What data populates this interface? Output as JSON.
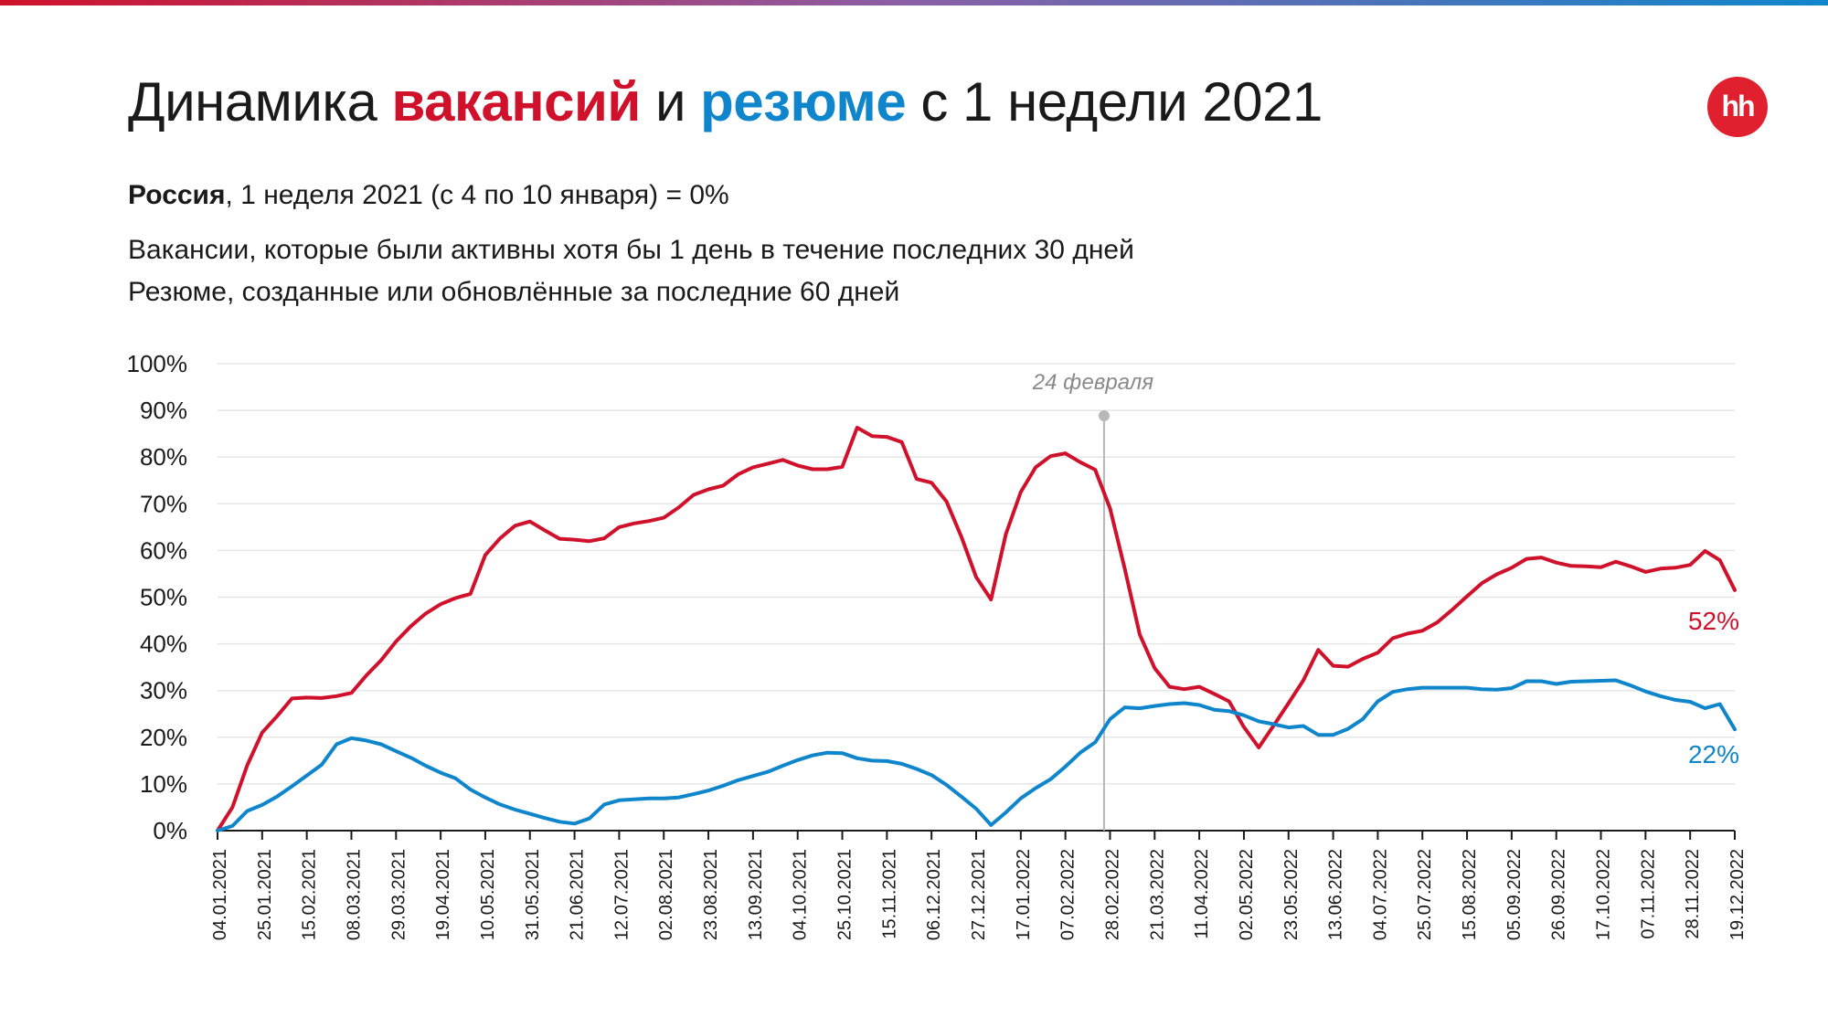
{
  "title": {
    "prefix": "Динамика ",
    "vacancies": "вакансий",
    "middle": " и ",
    "resumes": "резюме",
    "suffix": " с 1 недели 2021"
  },
  "subtitle": {
    "region": "Россия",
    "rest": ", 1 неделя 2021 (с 4 по 10 января) = 0%"
  },
  "notes": {
    "vacancies": "Вакансии, которые были активны хотя бы 1 день в течение последних 30 дней",
    "resumes": "Резюме, созданные или обновлённые за последние 60 дней"
  },
  "logo": {
    "text": "hh",
    "color": "#e0202e"
  },
  "colors": {
    "vacancies": "#d0112b",
    "resumes": "#0f86cc",
    "marker": "#b8b8b8",
    "grid": "#e6e6e6",
    "top_bar_left": "#d0112b",
    "top_bar_right": "#0f86cc"
  },
  "chart_data": {
    "type": "line",
    "ylim": [
      0,
      100
    ],
    "y_ticks": [
      "0%",
      "10%",
      "20%",
      "30%",
      "40%",
      "50%",
      "60%",
      "70%",
      "80%",
      "90%",
      "100%"
    ],
    "x_tick_labels": [
      "04.01.2021",
      "25.01.2021",
      "15.02.2021",
      "08.03.2021",
      "29.03.2021",
      "19.04.2021",
      "10.05.2021",
      "31.05.2021",
      "21.06.2021",
      "12.07.2021",
      "02.08.2021",
      "23.08.2021",
      "13.09.2021",
      "04.10.2021",
      "25.10.2021",
      "15.11.2021",
      "06.12.2021",
      "27.12.2021",
      "17.01.2022",
      "07.02.2022",
      "28.02.2022",
      "21.03.2022",
      "11.04.2022",
      "02.05.2022",
      "23.05.2022",
      "13.06.2022",
      "04.07.2022",
      "25.07.2022",
      "15.08.2022",
      "05.09.2022",
      "26.09.2022",
      "17.10.2022",
      "07.11.2022",
      "28.11.2022",
      "19.12.2022"
    ],
    "annotation": {
      "label": "24 февраля",
      "week_index": 59.6
    },
    "series": [
      {
        "name": "вакансий",
        "end_label": "52%",
        "values": [
          0,
          5,
          14,
          21,
          24.5,
          28.3,
          28.5,
          28.4,
          28.8,
          29.5,
          33.2,
          36.5,
          40.5,
          43.8,
          46.5,
          48.5,
          49.8,
          50.7,
          59,
          62.6,
          65.3,
          66.2,
          64.3,
          62.5,
          62.3,
          62,
          62.6,
          65,
          65.8,
          66.3,
          67,
          69.2,
          71.9,
          73.1,
          73.9,
          76.3,
          77.8,
          78.6,
          79.4,
          78.2,
          77.4,
          77.4,
          77.9,
          86.3,
          84.5,
          84.3,
          83.2,
          75.3,
          74.5,
          70.5,
          63,
          54.3,
          49.5,
          63.5,
          72.5,
          77.8,
          80.2,
          80.8,
          78.9,
          77.3,
          69,
          56,
          42,
          34.8,
          30.8,
          30.3,
          30.8,
          29.3,
          27.7,
          22.2,
          17.8,
          22.5,
          27.3,
          32.2,
          38.7,
          35.3,
          35.1,
          36.8,
          38.1,
          41.2,
          42.2,
          42.8,
          44.6,
          47.3,
          50.2,
          53,
          54.9,
          56.3,
          58.2,
          58.5,
          57.4,
          56.7,
          56.6,
          56.4,
          57.6,
          56.6,
          55.4,
          56.1,
          56.3,
          56.9,
          59.9,
          57.9,
          51.5
        ]
      },
      {
        "name": "резюме",
        "end_label": "22%",
        "values": [
          0,
          1,
          4.2,
          5.5,
          7.3,
          9.5,
          11.8,
          14.1,
          18.5,
          19.8,
          19.3,
          18.5,
          17,
          15.6,
          13.9,
          12.4,
          11.2,
          8.8,
          7.1,
          5.6,
          4.5,
          3.6,
          2.7,
          1.9,
          1.5,
          2.6,
          5.6,
          6.5,
          6.7,
          6.9,
          6.9,
          7.1,
          7.8,
          8.6,
          9.6,
          10.8,
          11.7,
          12.6,
          13.9,
          15.1,
          16.1,
          16.7,
          16.6,
          15.5,
          15,
          14.9,
          14.3,
          13.2,
          11.9,
          9.8,
          7.3,
          4.7,
          1.2,
          3.9,
          6.9,
          9.1,
          11,
          13.7,
          16.7,
          18.9,
          23.9,
          26.4,
          26.2,
          26.7,
          27.1,
          27.3,
          26.9,
          25.9,
          25.6,
          24.7,
          23.4,
          22.8,
          22.1,
          22.4,
          20.5,
          20.5,
          21.8,
          23.9,
          27.7,
          29.7,
          30.3,
          30.6,
          30.6,
          30.6,
          30.6,
          30.3,
          30.2,
          30.5,
          32,
          32,
          31.4,
          31.9,
          32,
          32.1,
          32.2,
          31.1,
          29.8,
          28.8,
          28,
          27.6,
          26.2,
          27.1,
          21.7
        ]
      }
    ]
  }
}
